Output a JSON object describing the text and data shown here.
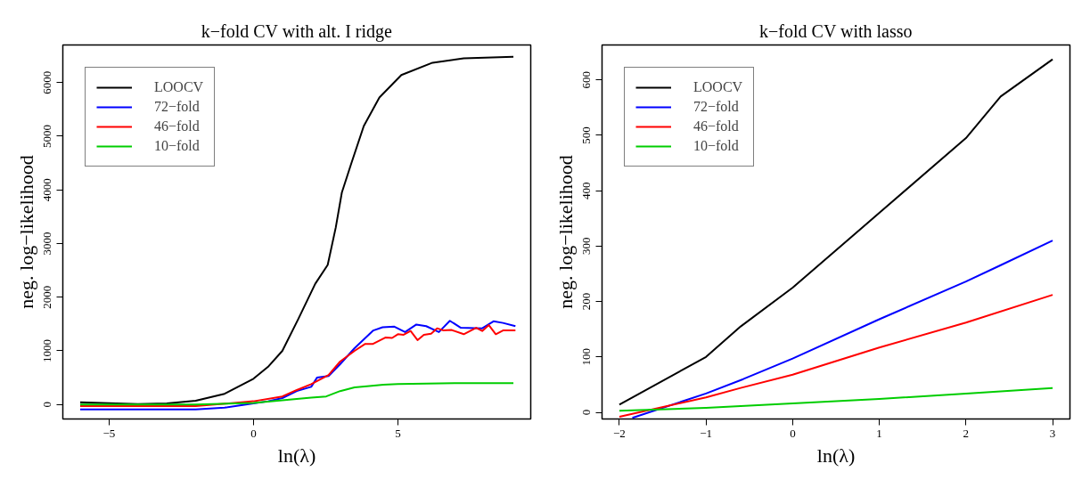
{
  "chart_data": [
    {
      "type": "line",
      "title": "k−fold CV with alt. I ridge",
      "xlabel": "ln(λ)",
      "ylabel": "neg. log−likelihood",
      "xlim": [
        -6.6,
        9.6
      ],
      "ylim": [
        -270,
        6700
      ],
      "xticks": [
        -5,
        0,
        5
      ],
      "yticks": [
        0,
        1000,
        2000,
        3000,
        4000,
        5000,
        6000
      ],
      "legend": "top left",
      "grid": false,
      "series": [
        {
          "name": "LOOCV",
          "color": "#000000",
          "x": [
            -6,
            -4,
            -3,
            -2,
            -1,
            0,
            0.5,
            1,
            1.55,
            2.14,
            2.57,
            2.85,
            3.06,
            3.38,
            3.82,
            4.36,
            5.12,
            6.2,
            7.28,
            9
          ],
          "values": [
            40,
            10,
            20,
            70,
            200,
            480,
            700,
            1000,
            1590,
            2250,
            2600,
            3300,
            3950,
            4480,
            5190,
            5720,
            6140,
            6370,
            6450,
            6480
          ]
        },
        {
          "name": "72−fold",
          "color": "#0000ff",
          "x": [
            -6,
            -2,
            -1,
            0,
            0.5,
            1,
            1.5,
            2,
            2.2,
            2.6,
            3,
            3.5,
            4.15,
            4.47,
            4.88,
            5.25,
            5.64,
            5.98,
            6.42,
            6.8,
            7.18,
            7.92,
            8.31,
            8.64,
            9.07
          ],
          "values": [
            -90,
            -90,
            -60,
            20,
            60,
            120,
            250,
            330,
            500,
            530,
            750,
            1050,
            1380,
            1440,
            1450,
            1350,
            1490,
            1460,
            1350,
            1560,
            1430,
            1420,
            1550,
            1520,
            1460
          ]
        },
        {
          "name": "46−fold",
          "color": "#ff0000",
          "x": [
            -6,
            -2,
            0,
            1,
            1.5,
            2,
            2.6,
            3,
            3.5,
            3.87,
            4.14,
            4.58,
            4.8,
            5.0,
            5.2,
            5.44,
            5.68,
            5.9,
            6.15,
            6.36,
            6.58,
            6.85,
            7.28,
            7.71,
            7.92,
            8.15,
            8.39,
            8.64,
            9.07
          ],
          "values": [
            -30,
            -30,
            60,
            150,
            270,
            380,
            550,
            800,
            1000,
            1130,
            1130,
            1250,
            1240,
            1310,
            1300,
            1370,
            1200,
            1300,
            1320,
            1420,
            1380,
            1390,
            1310,
            1430,
            1370,
            1480,
            1310,
            1380,
            1380
          ]
        },
        {
          "name": "10−fold",
          "color": "#00cd00",
          "x": [
            -6,
            -2,
            0,
            1,
            2,
            2.52,
            3,
            3.5,
            3.93,
            4.5,
            5,
            6,
            7,
            9
          ],
          "values": [
            0,
            0,
            30,
            80,
            130,
            150,
            250,
            320,
            340,
            370,
            380,
            390,
            400,
            400
          ]
        }
      ]
    },
    {
      "type": "line",
      "title": "k−fold CV with lasso",
      "xlabel": "ln(λ)",
      "ylabel": "neg. log−likelihood",
      "xlim": [
        -2.2,
        3.2
      ],
      "ylim": [
        -12,
        663
      ],
      "xticks": [
        -2,
        -1,
        0,
        1,
        2,
        3
      ],
      "yticks": [
        0,
        100,
        200,
        300,
        400,
        500,
        600
      ],
      "legend": "top left",
      "grid": false,
      "series": [
        {
          "name": "LOOCV",
          "color": "#000000",
          "x": [
            -2,
            -1,
            -0.6,
            0,
            1,
            2,
            2.4,
            3
          ],
          "values": [
            14,
            100,
            155,
            225,
            360,
            495,
            570,
            637
          ]
        },
        {
          "name": "72−fold",
          "color": "#0000ff",
          "x": [
            -1.85,
            -1,
            -0.57,
            0,
            1,
            2,
            2.38,
            3
          ],
          "values": [
            -10,
            34,
            60,
            97,
            168,
            236,
            264,
            310
          ]
        },
        {
          "name": "46−fold",
          "color": "#ff0000",
          "x": [
            -2,
            -1,
            -0.6,
            0,
            1,
            2,
            3
          ],
          "values": [
            -8,
            27,
            44,
            68,
            117,
            162,
            212
          ]
        },
        {
          "name": "10−fold",
          "color": "#00cd00",
          "x": [
            -2,
            -1,
            0,
            1,
            2,
            3
          ],
          "values": [
            3,
            8,
            16,
            24,
            34,
            44
          ]
        }
      ]
    }
  ]
}
